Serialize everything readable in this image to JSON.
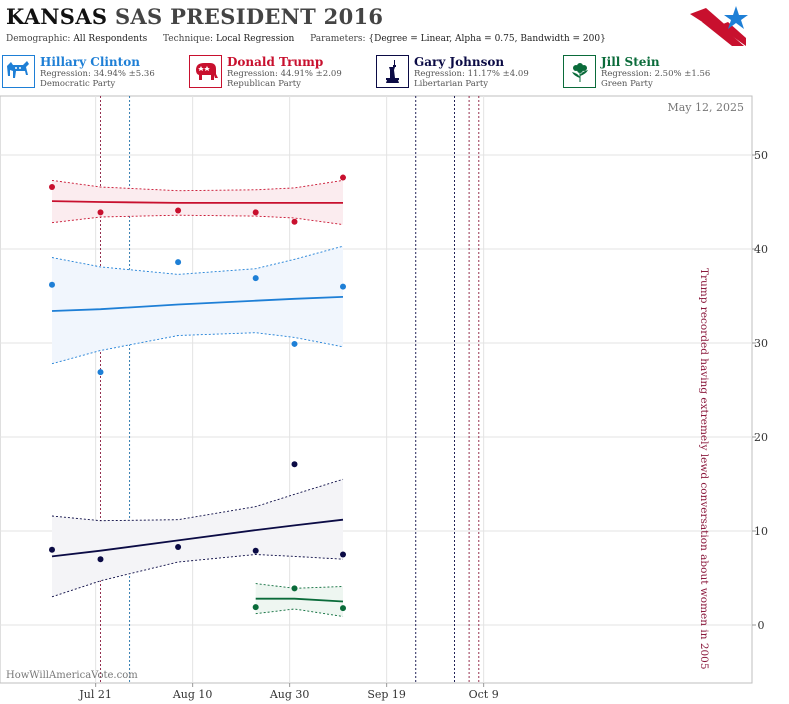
{
  "header": {
    "state": "KANSAS",
    "title_rest": "SAS PRESIDENT 2016",
    "demographic_label": "Demographic:",
    "demographic_value": "All Respondents",
    "technique_label": "Technique:",
    "technique_value": "Local Regression",
    "parameters_label": "Parameters:",
    "parameters_value": "{Degree = Linear, Alpha = 0.75, Bandwidth = 200}"
  },
  "legend": [
    {
      "name": "Hillary Clinton",
      "regression": "Regression: 34.94% ±5.36",
      "party": "Democratic Party",
      "color": "#1e7fd6",
      "icon": "donkey-icon"
    },
    {
      "name": "Donald Trump",
      "regression": "Regression: 44.91% ±2.09",
      "party": "Republican Party",
      "color": "#c8102e",
      "icon": "elephant-icon"
    },
    {
      "name": "Gary Johnson",
      "regression": "Regression: 11.17% ±4.09",
      "party": "Libertarian Party",
      "color": "#0b0b45",
      "icon": "liberty-statue-icon"
    },
    {
      "name": "Jill Stein",
      "regression": "Regression: 2.50% ±1.56",
      "party": "Green Party",
      "color": "#0a6b3a",
      "icon": "flower-icon"
    }
  ],
  "chart_data": {
    "type": "scatter",
    "date_label": "May 12, 2025",
    "watermark": "HowWillAmericaVote.com",
    "annotation": "Trump recorded having extremely lewd conversation about women in 2005",
    "x_axis": {
      "range": [
        "2016-07-12",
        "2016-10-14"
      ],
      "ticks": [
        {
          "date": "2016-07-21",
          "label": "Jul 21"
        },
        {
          "date": "2016-08-10",
          "label": "Aug 10"
        },
        {
          "date": "2016-08-30",
          "label": "Aug 30"
        },
        {
          "date": "2016-09-19",
          "label": "Sep 19"
        },
        {
          "date": "2016-10-09",
          "label": "Oct 9"
        }
      ]
    },
    "y_axis": {
      "range": [
        -6,
        56
      ],
      "ticks": [
        0,
        10,
        20,
        30,
        40,
        50
      ],
      "position": "right"
    },
    "grid": true,
    "event_lines": [
      {
        "date": "2016-07-22",
        "color": "#8b1a3d"
      },
      {
        "date": "2016-07-28",
        "color": "#1e6fa8"
      },
      {
        "date": "2016-09-25",
        "color": "#0b0b45"
      },
      {
        "date": "2016-10-03",
        "color": "#0b0b45"
      },
      {
        "date": "2016-10-06",
        "color": "#8b1a3d"
      },
      {
        "date": "2016-10-08",
        "color": "#8b1a3d"
      }
    ],
    "series": [
      {
        "name": "Donald Trump",
        "color": "#c8102e",
        "band_fill": "#fbecef",
        "points": [
          {
            "x": "2016-07-12",
            "y": 46.6
          },
          {
            "x": "2016-07-22",
            "y": 43.9
          },
          {
            "x": "2016-08-07",
            "y": 44.1
          },
          {
            "x": "2016-08-23",
            "y": 43.9
          },
          {
            "x": "2016-08-31",
            "y": 42.9
          },
          {
            "x": "2016-09-10",
            "y": 47.6
          }
        ],
        "trend": [
          {
            "x": "2016-07-12",
            "y": 45.1
          },
          {
            "x": "2016-07-22",
            "y": 45.0
          },
          {
            "x": "2016-08-07",
            "y": 44.9
          },
          {
            "x": "2016-08-23",
            "y": 44.9
          },
          {
            "x": "2016-08-31",
            "y": 44.9
          },
          {
            "x": "2016-09-10",
            "y": 44.9
          }
        ],
        "upper": [
          {
            "x": "2016-07-12",
            "y": 47.3
          },
          {
            "x": "2016-07-22",
            "y": 46.6
          },
          {
            "x": "2016-08-07",
            "y": 46.2
          },
          {
            "x": "2016-08-23",
            "y": 46.3
          },
          {
            "x": "2016-08-31",
            "y": 46.5
          },
          {
            "x": "2016-09-10",
            "y": 47.3
          }
        ],
        "lower": [
          {
            "x": "2016-07-12",
            "y": 42.8
          },
          {
            "x": "2016-07-22",
            "y": 43.4
          },
          {
            "x": "2016-08-07",
            "y": 43.6
          },
          {
            "x": "2016-08-23",
            "y": 43.5
          },
          {
            "x": "2016-08-31",
            "y": 43.3
          },
          {
            "x": "2016-09-10",
            "y": 42.6
          }
        ]
      },
      {
        "name": "Hillary Clinton",
        "color": "#1e7fd6",
        "band_fill": "#f1f6fd",
        "points": [
          {
            "x": "2016-07-12",
            "y": 36.2
          },
          {
            "x": "2016-07-22",
            "y": 26.9
          },
          {
            "x": "2016-08-07",
            "y": 38.6
          },
          {
            "x": "2016-08-23",
            "y": 36.9
          },
          {
            "x": "2016-08-31",
            "y": 29.9
          },
          {
            "x": "2016-09-10",
            "y": 36.0
          }
        ],
        "trend": [
          {
            "x": "2016-07-12",
            "y": 33.4
          },
          {
            "x": "2016-07-22",
            "y": 33.6
          },
          {
            "x": "2016-08-07",
            "y": 34.1
          },
          {
            "x": "2016-08-23",
            "y": 34.5
          },
          {
            "x": "2016-08-31",
            "y": 34.7
          },
          {
            "x": "2016-09-10",
            "y": 34.9
          }
        ],
        "upper": [
          {
            "x": "2016-07-12",
            "y": 39.1
          },
          {
            "x": "2016-07-22",
            "y": 38.1
          },
          {
            "x": "2016-08-07",
            "y": 37.3
          },
          {
            "x": "2016-08-23",
            "y": 37.9
          },
          {
            "x": "2016-08-31",
            "y": 38.9
          },
          {
            "x": "2016-09-10",
            "y": 40.3
          }
        ],
        "lower": [
          {
            "x": "2016-07-12",
            "y": 27.8
          },
          {
            "x": "2016-07-22",
            "y": 29.2
          },
          {
            "x": "2016-08-07",
            "y": 30.8
          },
          {
            "x": "2016-08-23",
            "y": 31.1
          },
          {
            "x": "2016-08-31",
            "y": 30.6
          },
          {
            "x": "2016-09-10",
            "y": 29.6
          }
        ]
      },
      {
        "name": "Gary Johnson",
        "color": "#0b0b45",
        "band_fill": "#f4f4f7",
        "points": [
          {
            "x": "2016-07-12",
            "y": 8.0
          },
          {
            "x": "2016-07-22",
            "y": 7.0
          },
          {
            "x": "2016-08-07",
            "y": 8.3
          },
          {
            "x": "2016-08-23",
            "y": 7.9
          },
          {
            "x": "2016-08-31",
            "y": 17.1
          },
          {
            "x": "2016-09-10",
            "y": 7.5
          }
        ],
        "trend": [
          {
            "x": "2016-07-12",
            "y": 7.3
          },
          {
            "x": "2016-07-22",
            "y": 7.9
          },
          {
            "x": "2016-08-07",
            "y": 9.0
          },
          {
            "x": "2016-08-23",
            "y": 10.1
          },
          {
            "x": "2016-08-31",
            "y": 10.6
          },
          {
            "x": "2016-09-10",
            "y": 11.2
          }
        ],
        "upper": [
          {
            "x": "2016-07-12",
            "y": 11.6
          },
          {
            "x": "2016-07-22",
            "y": 11.1
          },
          {
            "x": "2016-08-07",
            "y": 11.2
          },
          {
            "x": "2016-08-23",
            "y": 12.6
          },
          {
            "x": "2016-08-31",
            "y": 13.9
          },
          {
            "x": "2016-09-10",
            "y": 15.5
          }
        ],
        "lower": [
          {
            "x": "2016-07-12",
            "y": 3.0
          },
          {
            "x": "2016-07-22",
            "y": 4.7
          },
          {
            "x": "2016-08-07",
            "y": 6.7
          },
          {
            "x": "2016-08-23",
            "y": 7.5
          },
          {
            "x": "2016-08-31",
            "y": 7.3
          },
          {
            "x": "2016-09-10",
            "y": 7.0
          }
        ]
      },
      {
        "name": "Jill Stein",
        "color": "#0a6b3a",
        "band_fill": "#eef6f1",
        "points": [
          {
            "x": "2016-08-23",
            "y": 1.9
          },
          {
            "x": "2016-08-31",
            "y": 3.9
          },
          {
            "x": "2016-09-10",
            "y": 1.8
          }
        ],
        "trend": [
          {
            "x": "2016-08-23",
            "y": 2.8
          },
          {
            "x": "2016-08-31",
            "y": 2.8
          },
          {
            "x": "2016-09-10",
            "y": 2.5
          }
        ],
        "upper": [
          {
            "x": "2016-08-23",
            "y": 4.4
          },
          {
            "x": "2016-08-31",
            "y": 3.9
          },
          {
            "x": "2016-09-10",
            "y": 4.1
          }
        ],
        "lower": [
          {
            "x": "2016-08-23",
            "y": 1.2
          },
          {
            "x": "2016-08-31",
            "y": 1.7
          },
          {
            "x": "2016-09-10",
            "y": 0.9
          }
        ]
      }
    ]
  }
}
